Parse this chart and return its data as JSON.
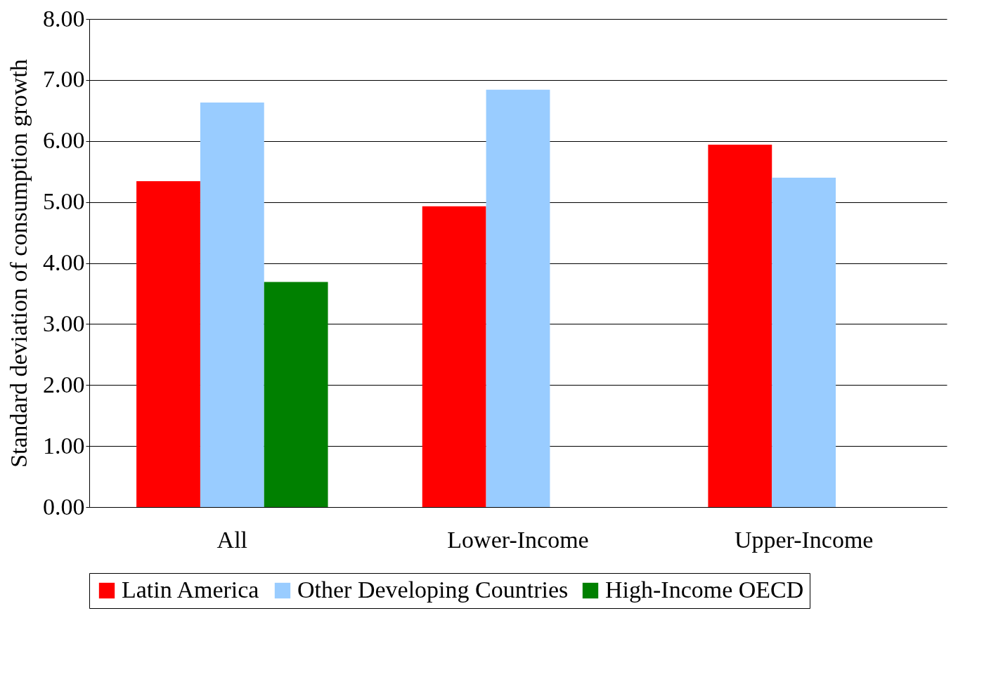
{
  "chart_data": {
    "type": "bar",
    "ylabel": "Standard deviation of consumption growth",
    "categories": [
      "All",
      "Lower-Income",
      "Upper-Income"
    ],
    "series": [
      {
        "name": "Latin America",
        "color": "#ff0000",
        "values": [
          5.34,
          4.93,
          5.94
        ]
      },
      {
        "name": "Other Developing Countries",
        "color": "#99ccff",
        "values": [
          6.63,
          6.84,
          5.4
        ]
      },
      {
        "name": "High-Income OECD",
        "color": "#008000",
        "values": [
          3.69,
          null,
          null
        ]
      }
    ],
    "ylim": [
      0,
      8
    ],
    "yticks": [
      {
        "value": 0,
        "label": "0.00"
      },
      {
        "value": 1,
        "label": "1.00"
      },
      {
        "value": 2,
        "label": "2.00"
      },
      {
        "value": 3,
        "label": "3.00"
      },
      {
        "value": 4,
        "label": "4.00"
      },
      {
        "value": 5,
        "label": "5.00"
      },
      {
        "value": 6,
        "label": "6.00"
      },
      {
        "value": 7,
        "label": "7.00"
      },
      {
        "value": 8,
        "label": "8.00"
      }
    ],
    "grid": "y",
    "legend": "bottom"
  }
}
